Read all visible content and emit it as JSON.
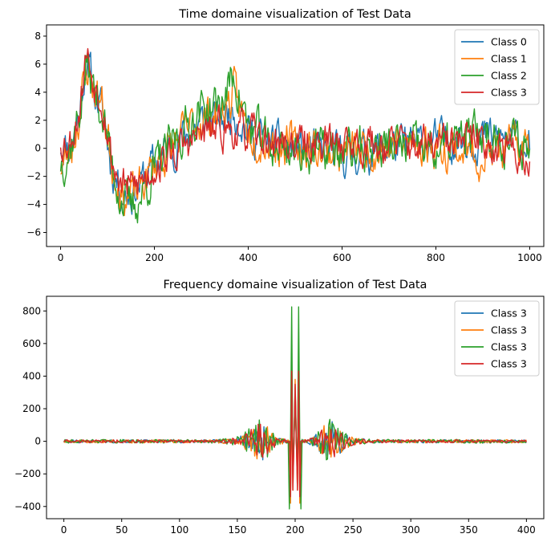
{
  "chart_data": [
    {
      "type": "line",
      "title": "Time domaine visualization of Test Data",
      "xlim": [
        -30,
        1030
      ],
      "ylim": [
        -7,
        8.8
      ],
      "xticks": [
        0,
        200,
        400,
        600,
        800,
        1000
      ],
      "yticks": [
        -6,
        -4,
        -2,
        0,
        2,
        4,
        6,
        8
      ],
      "grid": false,
      "legend_position": "top-right",
      "x": {
        "start": 0,
        "end": 1000,
        "count": 501
      },
      "series": [
        {
          "name": "Class 0",
          "color": "#1f77b4",
          "anchors": [
            [
              0,
              0.3
            ],
            [
              20,
              0.2
            ],
            [
              40,
              2.5
            ],
            [
              55,
              6.5
            ],
            [
              70,
              4.3
            ],
            [
              90,
              2.5
            ],
            [
              110,
              -1.5
            ],
            [
              130,
              -3
            ],
            [
              150,
              -3.2
            ],
            [
              170,
              -2.5
            ],
            [
              200,
              -1
            ],
            [
              250,
              0.5
            ],
            [
              300,
              1.8
            ],
            [
              340,
              2
            ],
            [
              370,
              2.8
            ],
            [
              400,
              1.2
            ],
            [
              450,
              0.3
            ],
            [
              500,
              0
            ],
            [
              600,
              -0.5
            ],
            [
              700,
              0
            ],
            [
              800,
              0.5
            ],
            [
              900,
              0.8
            ],
            [
              1000,
              0.5
            ]
          ],
          "noise": 0.9,
          "seed": 11
        },
        {
          "name": "Class 1",
          "color": "#ff7f0e",
          "anchors": [
            [
              0,
              -1.2
            ],
            [
              20,
              -0.5
            ],
            [
              40,
              2.5
            ],
            [
              55,
              5.8
            ],
            [
              70,
              4.5
            ],
            [
              90,
              3
            ],
            [
              110,
              -1
            ],
            [
              130,
              -3.3
            ],
            [
              150,
              -3.5
            ],
            [
              170,
              -2.8
            ],
            [
              200,
              -1.2
            ],
            [
              250,
              0.6
            ],
            [
              300,
              2.2
            ],
            [
              340,
              2.3
            ],
            [
              370,
              3.9
            ],
            [
              400,
              1.3
            ],
            [
              450,
              0.4
            ],
            [
              500,
              0.2
            ],
            [
              600,
              -0.3
            ],
            [
              700,
              0.2
            ],
            [
              800,
              0.3
            ],
            [
              900,
              -0.5
            ],
            [
              1000,
              0.3
            ]
          ],
          "noise": 0.95,
          "seed": 23
        },
        {
          "name": "Class 2",
          "color": "#2ca02c",
          "anchors": [
            [
              0,
              -1
            ],
            [
              20,
              0
            ],
            [
              40,
              2.5
            ],
            [
              55,
              6
            ],
            [
              70,
              4.2
            ],
            [
              90,
              2.5
            ],
            [
              110,
              -1.3
            ],
            [
              130,
              -3.6
            ],
            [
              150,
              -4.3
            ],
            [
              170,
              -3.5
            ],
            [
              200,
              -1.5
            ],
            [
              250,
              0.8
            ],
            [
              300,
              2.8
            ],
            [
              340,
              3
            ],
            [
              370,
              5.2
            ],
            [
              400,
              1.5
            ],
            [
              450,
              0.2
            ],
            [
              500,
              -0.1
            ],
            [
              600,
              -0.3
            ],
            [
              700,
              0.2
            ],
            [
              800,
              -0.2
            ],
            [
              900,
              1.2
            ],
            [
              1000,
              0
            ]
          ],
          "noise": 1.0,
          "seed": 37
        },
        {
          "name": "Class 3",
          "color": "#d62728",
          "anchors": [
            [
              0,
              0.6
            ],
            [
              20,
              0.5
            ],
            [
              40,
              2.8
            ],
            [
              55,
              7
            ],
            [
              70,
              4.8
            ],
            [
              90,
              3.5
            ],
            [
              110,
              -1
            ],
            [
              130,
              -2.6
            ],
            [
              150,
              -2.8
            ],
            [
              170,
              -2.4
            ],
            [
              200,
              -1.3
            ],
            [
              250,
              -0.2
            ],
            [
              300,
              1
            ],
            [
              340,
              1.3
            ],
            [
              370,
              1.3
            ],
            [
              400,
              1
            ],
            [
              450,
              0.4
            ],
            [
              500,
              0.3
            ],
            [
              600,
              0.5
            ],
            [
              700,
              0.3
            ],
            [
              800,
              0.2
            ],
            [
              900,
              0.6
            ],
            [
              1000,
              -0.8
            ]
          ],
          "noise": 0.85,
          "seed": 53
        }
      ]
    },
    {
      "type": "line",
      "title": "Frequency domaine visualization of Test Data",
      "xlim": [
        -15,
        415
      ],
      "ylim": [
        -475,
        890
      ],
      "xticks": [
        0,
        50,
        100,
        150,
        200,
        250,
        300,
        350,
        400
      ],
      "yticks": [
        -400,
        -200,
        0,
        200,
        400,
        600,
        800
      ],
      "grid": false,
      "legend_position": "top-right",
      "x": {
        "start": 0,
        "end": 400,
        "count": 401
      },
      "series": [
        {
          "name": "Class 3",
          "color": "#1f77b4",
          "noise": 1.0,
          "seed": 101,
          "peaks": [
            [
              196,
              -330
            ],
            [
              197,
              300
            ],
            [
              198,
              -200
            ],
            [
              200,
              330
            ],
            [
              202,
              -200
            ],
            [
              203,
              300
            ],
            [
              204,
              -330
            ]
          ]
        },
        {
          "name": "Class 3",
          "color": "#ff7f0e",
          "noise": 1.0,
          "seed": 131,
          "peaks": [
            [
              196,
              -380
            ],
            [
              197,
              260
            ],
            [
              198,
              -300
            ],
            [
              200,
              380
            ],
            [
              202,
              -300
            ],
            [
              203,
              260
            ],
            [
              204,
              -380
            ]
          ]
        },
        {
          "name": "Class 3",
          "color": "#2ca02c",
          "noise": 1.1,
          "seed": 151,
          "peaks": [
            [
              195,
              -415
            ],
            [
              197,
              825
            ],
            [
              198,
              -150
            ],
            [
              200,
              250
            ],
            [
              202,
              -150
            ],
            [
              203,
              825
            ],
            [
              205,
              -415
            ]
          ]
        },
        {
          "name": "Class 3",
          "color": "#d62728",
          "noise": 0.9,
          "seed": 171,
          "peaks": [
            [
              196,
              -340
            ],
            [
              197,
              430
            ],
            [
              198,
              -300
            ],
            [
              200,
              350
            ],
            [
              202,
              -300
            ],
            [
              203,
              430
            ],
            [
              204,
              -340
            ]
          ]
        }
      ]
    }
  ]
}
